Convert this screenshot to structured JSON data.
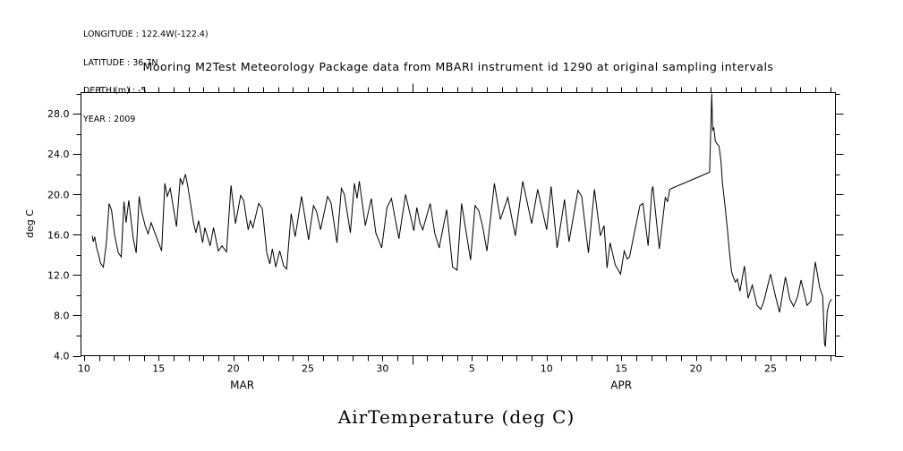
{
  "meta": {
    "longitude": "LONGITUDE : 122.4W(-122.4)",
    "latitude": "LATITUDE : 36.7N",
    "depth": "DEPTH (m) : -5",
    "year": "YEAR : 2009"
  },
  "title": "Mooring M2Test Meteorology Package data from MBARI instrument id 1290 at original sampling intervals",
  "bottom_label": "AirTemperature (deg C)",
  "colors": {
    "line": "#000000",
    "text": "#000000",
    "background": "#ffffff"
  },
  "chart_data": {
    "type": "line",
    "title": "Mooring M2Test Meteorology Package data from MBARI instrument id 1290 at original sampling intervals",
    "caption": "AirTemperature (deg C)",
    "ylabel": "deg C",
    "x_encoding": "day index: March day number; April dates = day + 31",
    "xlim": [
      9.8,
      60.35
    ],
    "ylim": [
      4.0,
      30.1
    ],
    "grid": false,
    "legend": "none",
    "x_ticks_labeled": [
      {
        "day": 10,
        "label": "10"
      },
      {
        "day": 15,
        "label": "15"
      },
      {
        "day": 20,
        "label": "20"
      },
      {
        "day": 25,
        "label": "25"
      },
      {
        "day": 30,
        "label": "30"
      },
      {
        "day": 36,
        "label": "5"
      },
      {
        "day": 41,
        "label": "10"
      },
      {
        "day": 46,
        "label": "15"
      },
      {
        "day": 51,
        "label": "20"
      },
      {
        "day": 56,
        "label": "25"
      }
    ],
    "x_minor_ticks": {
      "start": 10,
      "end": 60,
      "step": 1
    },
    "month_boundary_ticks": [
      32
    ],
    "month_labels": [
      {
        "label": "MAR",
        "day": 20.6
      },
      {
        "label": "APR",
        "day": 46.0
      }
    ],
    "y_ticks_labeled": [
      {
        "value": 4,
        "label": "4.0"
      },
      {
        "value": 8,
        "label": "8.0"
      },
      {
        "value": 12,
        "label": "12.0"
      },
      {
        "value": 16,
        "label": "16.0"
      },
      {
        "value": 20,
        "label": "20.0"
      },
      {
        "value": 24,
        "label": "24.0"
      },
      {
        "value": 28,
        "label": "28.0"
      }
    ],
    "y_minor_ticks": {
      "start": 4,
      "end": 30,
      "step": 2
    },
    "series": [
      {
        "name": "AirTemperature",
        "points": [
          [
            10.55,
            15.9
          ],
          [
            10.62,
            15.3
          ],
          [
            10.72,
            15.8
          ],
          [
            10.85,
            14.7
          ],
          [
            11.0,
            13.9
          ],
          [
            11.1,
            13.2
          ],
          [
            11.3,
            12.8
          ],
          [
            11.5,
            15.2
          ],
          [
            11.68,
            19.1
          ],
          [
            11.85,
            18.4
          ],
          [
            12.05,
            16.0
          ],
          [
            12.3,
            14.2
          ],
          [
            12.5,
            13.8
          ],
          [
            12.68,
            19.3
          ],
          [
            12.82,
            17.2
          ],
          [
            13.0,
            19.4
          ],
          [
            13.3,
            15.6
          ],
          [
            13.5,
            14.2
          ],
          [
            13.7,
            19.8
          ],
          [
            13.85,
            18.4
          ],
          [
            14.1,
            16.9
          ],
          [
            14.3,
            16.1
          ],
          [
            14.5,
            17.2
          ],
          [
            14.75,
            16.2
          ],
          [
            15.0,
            15.2
          ],
          [
            15.2,
            14.4
          ],
          [
            15.42,
            21.1
          ],
          [
            15.58,
            19.8
          ],
          [
            15.78,
            20.6
          ],
          [
            16.2,
            16.8
          ],
          [
            16.45,
            21.6
          ],
          [
            16.6,
            21.0
          ],
          [
            16.8,
            22.0
          ],
          [
            16.95,
            20.9
          ],
          [
            17.35,
            17.1
          ],
          [
            17.5,
            16.2
          ],
          [
            17.68,
            17.4
          ],
          [
            17.95,
            15.2
          ],
          [
            18.1,
            16.7
          ],
          [
            18.28,
            15.8
          ],
          [
            18.45,
            14.9
          ],
          [
            18.68,
            16.7
          ],
          [
            19.0,
            14.4
          ],
          [
            19.25,
            14.9
          ],
          [
            19.55,
            14.3
          ],
          [
            19.85,
            20.9
          ],
          [
            20.15,
            17.1
          ],
          [
            20.5,
            19.9
          ],
          [
            20.7,
            19.4
          ],
          [
            21.0,
            16.5
          ],
          [
            21.15,
            17.4
          ],
          [
            21.32,
            16.7
          ],
          [
            21.7,
            19.1
          ],
          [
            21.95,
            18.6
          ],
          [
            22.25,
            14.2
          ],
          [
            22.45,
            13.1
          ],
          [
            22.62,
            14.6
          ],
          [
            22.85,
            12.8
          ],
          [
            23.12,
            14.4
          ],
          [
            23.38,
            12.9
          ],
          [
            23.58,
            12.6
          ],
          [
            23.88,
            18.1
          ],
          [
            24.15,
            15.8
          ],
          [
            24.58,
            19.8
          ],
          [
            25.05,
            15.5
          ],
          [
            25.38,
            18.9
          ],
          [
            25.58,
            18.3
          ],
          [
            25.85,
            16.5
          ],
          [
            26.32,
            19.8
          ],
          [
            26.55,
            19.2
          ],
          [
            26.95,
            15.2
          ],
          [
            27.25,
            20.6
          ],
          [
            27.45,
            20.0
          ],
          [
            27.85,
            16.2
          ],
          [
            28.12,
            21.1
          ],
          [
            28.3,
            19.6
          ],
          [
            28.45,
            21.3
          ],
          [
            28.85,
            16.9
          ],
          [
            29.25,
            19.6
          ],
          [
            29.55,
            16.2
          ],
          [
            29.95,
            14.7
          ],
          [
            30.3,
            18.7
          ],
          [
            30.6,
            19.6
          ],
          [
            31.1,
            15.6
          ],
          [
            31.55,
            20.0
          ],
          [
            32.1,
            16.4
          ],
          [
            32.3,
            18.7
          ],
          [
            32.5,
            17.2
          ],
          [
            32.7,
            16.5
          ],
          [
            33.2,
            19.1
          ],
          [
            33.5,
            16.2
          ],
          [
            33.8,
            14.7
          ],
          [
            34.3,
            18.5
          ],
          [
            34.7,
            12.8
          ],
          [
            35.0,
            12.5
          ],
          [
            35.3,
            19.1
          ],
          [
            35.9,
            13.5
          ],
          [
            36.2,
            18.9
          ],
          [
            36.45,
            18.4
          ],
          [
            36.7,
            16.9
          ],
          [
            37.0,
            14.4
          ],
          [
            37.5,
            21.1
          ],
          [
            37.9,
            17.5
          ],
          [
            38.4,
            19.7
          ],
          [
            38.9,
            15.9
          ],
          [
            39.4,
            21.3
          ],
          [
            40.0,
            17.1
          ],
          [
            40.4,
            20.5
          ],
          [
            41.0,
            16.5
          ],
          [
            41.3,
            20.8
          ],
          [
            41.7,
            14.7
          ],
          [
            42.2,
            19.5
          ],
          [
            42.5,
            15.3
          ],
          [
            43.1,
            20.4
          ],
          [
            43.35,
            19.8
          ],
          [
            43.8,
            14.2
          ],
          [
            44.2,
            20.5
          ],
          [
            44.6,
            15.9
          ],
          [
            44.85,
            16.9
          ],
          [
            45.05,
            12.7
          ],
          [
            45.25,
            15.2
          ],
          [
            45.6,
            13.0
          ],
          [
            45.95,
            12.1
          ],
          [
            46.2,
            14.4
          ],
          [
            46.4,
            13.6
          ],
          [
            46.55,
            13.8
          ],
          [
            47.25,
            18.9
          ],
          [
            47.45,
            19.1
          ],
          [
            47.8,
            14.9
          ],
          [
            48.05,
            20.4
          ],
          [
            48.12,
            20.8
          ],
          [
            48.55,
            14.6
          ],
          [
            48.95,
            19.7
          ],
          [
            49.1,
            19.3
          ],
          [
            49.25,
            20.5
          ],
          [
            49.38,
            20.6
          ],
          [
            51.92,
            22.2
          ],
          [
            52.0,
            26.7
          ],
          [
            52.06,
            30.0
          ],
          [
            52.12,
            26.4
          ],
          [
            52.2,
            26.6
          ],
          [
            52.3,
            25.3
          ],
          [
            52.42,
            25.0
          ],
          [
            52.55,
            24.8
          ],
          [
            52.68,
            23.3
          ],
          [
            52.78,
            21.1
          ],
          [
            52.88,
            19.8
          ],
          [
            52.95,
            18.9
          ],
          [
            53.1,
            16.7
          ],
          [
            53.25,
            14.3
          ],
          [
            53.38,
            12.4
          ],
          [
            53.5,
            11.8
          ],
          [
            53.65,
            11.3
          ],
          [
            53.78,
            11.6
          ],
          [
            53.95,
            10.4
          ],
          [
            54.25,
            12.9
          ],
          [
            54.5,
            9.7
          ],
          [
            54.78,
            11.0
          ],
          [
            55.1,
            9.0
          ],
          [
            55.35,
            8.6
          ],
          [
            55.55,
            9.4
          ],
          [
            56.0,
            12.1
          ],
          [
            56.3,
            10.1
          ],
          [
            56.6,
            8.3
          ],
          [
            57.0,
            11.8
          ],
          [
            57.3,
            9.6
          ],
          [
            57.55,
            8.9
          ],
          [
            57.8,
            9.8
          ],
          [
            58.05,
            11.5
          ],
          [
            58.45,
            9.0
          ],
          [
            58.7,
            9.4
          ],
          [
            59.0,
            13.3
          ],
          [
            59.3,
            10.7
          ],
          [
            59.5,
            9.9
          ],
          [
            59.62,
            5.2
          ],
          [
            59.68,
            4.9
          ],
          [
            59.8,
            8.4
          ],
          [
            59.95,
            9.3
          ],
          [
            60.1,
            9.6
          ]
        ]
      }
    ]
  }
}
